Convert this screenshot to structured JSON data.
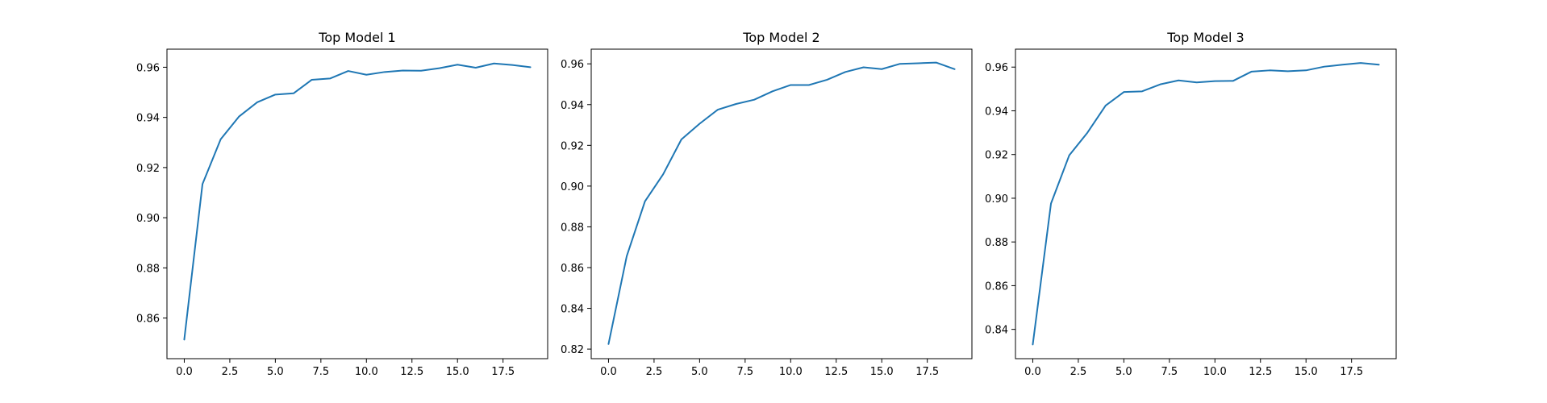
{
  "chart_data": [
    {
      "type": "line",
      "title": "Top Model 1",
      "xlabel": "",
      "ylabel": "",
      "color": "#1f77b4",
      "grid": false,
      "xlim": [
        -0.95,
        19.95
      ],
      "ylim": [
        0.8438,
        0.9672
      ],
      "xticks": [
        0.0,
        2.5,
        5.0,
        7.5,
        10.0,
        12.5,
        15.0,
        17.5
      ],
      "xtick_labels": [
        "0.0",
        "2.5",
        "5.0",
        "7.5",
        "10.0",
        "12.5",
        "15.0",
        "17.5"
      ],
      "yticks": [
        0.86,
        0.88,
        0.9,
        0.92,
        0.94,
        0.96
      ],
      "ytick_labels": [
        "0.86",
        "0.88",
        "0.90",
        "0.92",
        "0.94",
        "0.96"
      ],
      "series": [
        {
          "x": [
            0,
            1,
            2,
            3,
            4,
            5,
            6,
            7,
            8,
            9,
            10,
            11,
            12,
            13,
            14,
            15,
            16,
            17,
            18,
            19
          ],
          "values": [
            0.8514,
            0.9134,
            0.9313,
            0.9403,
            0.946,
            0.9491,
            0.9496,
            0.955,
            0.9555,
            0.9585,
            0.957,
            0.9581,
            0.9587,
            0.9586,
            0.9596,
            0.961,
            0.9598,
            0.9615,
            0.9609,
            0.96
          ]
        }
      ]
    },
    {
      "type": "line",
      "title": "Top Model 2",
      "xlabel": "",
      "ylabel": "",
      "color": "#1f77b4",
      "grid": false,
      "xlim": [
        -0.95,
        19.95
      ],
      "ylim": [
        0.8153,
        0.9672
      ],
      "xticks": [
        0.0,
        2.5,
        5.0,
        7.5,
        10.0,
        12.5,
        15.0,
        17.5
      ],
      "xtick_labels": [
        "0.0",
        "2.5",
        "5.0",
        "7.5",
        "10.0",
        "12.5",
        "15.0",
        "17.5"
      ],
      "yticks": [
        0.82,
        0.84,
        0.86,
        0.88,
        0.9,
        0.92,
        0.94,
        0.96
      ],
      "ytick_labels": [
        "0.82",
        "0.84",
        "0.86",
        "0.88",
        "0.90",
        "0.92",
        "0.94",
        "0.96"
      ],
      "series": [
        {
          "x": [
            0,
            1,
            2,
            3,
            4,
            5,
            6,
            7,
            8,
            9,
            10,
            11,
            12,
            13,
            14,
            15,
            16,
            17,
            18,
            19
          ],
          "values": [
            0.8225,
            0.8656,
            0.8925,
            0.9058,
            0.9229,
            0.9306,
            0.9375,
            0.9403,
            0.9424,
            0.9465,
            0.9496,
            0.9496,
            0.9522,
            0.956,
            0.9583,
            0.9574,
            0.96,
            0.9603,
            0.9606,
            0.9574
          ]
        }
      ]
    },
    {
      "type": "line",
      "title": "Top Model 3",
      "xlabel": "",
      "ylabel": "",
      "color": "#1f77b4",
      "grid": false,
      "xlim": [
        -0.95,
        19.95
      ],
      "ylim": [
        0.8266,
        0.9682
      ],
      "xticks": [
        0.0,
        2.5,
        5.0,
        7.5,
        10.0,
        12.5,
        15.0,
        17.5
      ],
      "xtick_labels": [
        "0.0",
        "2.5",
        "5.0",
        "7.5",
        "10.0",
        "12.5",
        "15.0",
        "17.5"
      ],
      "yticks": [
        0.84,
        0.86,
        0.88,
        0.9,
        0.92,
        0.94,
        0.96
      ],
      "ytick_labels": [
        "0.84",
        "0.86",
        "0.88",
        "0.90",
        "0.92",
        "0.94",
        "0.96"
      ],
      "series": [
        {
          "x": [
            0,
            1,
            2,
            3,
            4,
            5,
            6,
            7,
            8,
            9,
            10,
            11,
            12,
            13,
            14,
            15,
            16,
            17,
            18,
            19
          ],
          "values": [
            0.8331,
            0.8976,
            0.9196,
            0.93,
            0.9424,
            0.9486,
            0.9489,
            0.9521,
            0.9539,
            0.953,
            0.9536,
            0.9537,
            0.9579,
            0.9585,
            0.9581,
            0.9585,
            0.9602,
            0.9611,
            0.9619,
            0.9611
          ]
        }
      ]
    }
  ]
}
